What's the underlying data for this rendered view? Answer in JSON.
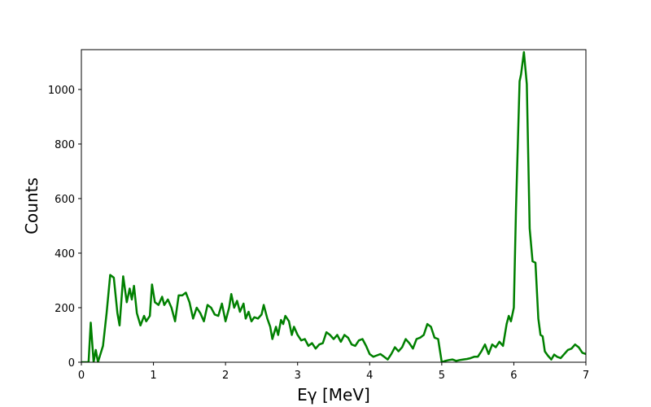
{
  "chart_data": {
    "type": "line",
    "x_label": "Eγ [MeV]",
    "y_label": "Counts",
    "xlim": [
      0,
      7
    ],
    "ylim": [
      0,
      1146
    ],
    "xticks": [
      0,
      1,
      2,
      3,
      4,
      5,
      6,
      7
    ],
    "yticks": [
      0,
      200,
      400,
      600,
      800,
      1000
    ],
    "series": [
      {
        "color": "#008000",
        "x": [
          0,
          0.1,
          0.13,
          0.17,
          0.2,
          0.23,
          0.3,
          0.35,
          0.4,
          0.45,
          0.5,
          0.53,
          0.58,
          0.63,
          0.67,
          0.7,
          0.73,
          0.77,
          0.82,
          0.87,
          0.9,
          0.95,
          0.98,
          1.02,
          1.07,
          1.12,
          1.15,
          1.2,
          1.25,
          1.3,
          1.35,
          1.4,
          1.45,
          1.5,
          1.55,
          1.6,
          1.65,
          1.7,
          1.75,
          1.8,
          1.85,
          1.9,
          1.95,
          2.0,
          2.05,
          2.08,
          2.12,
          2.16,
          2.2,
          2.25,
          2.28,
          2.32,
          2.36,
          2.4,
          2.45,
          2.5,
          2.53,
          2.58,
          2.62,
          2.65,
          2.7,
          2.73,
          2.77,
          2.8,
          2.83,
          2.88,
          2.92,
          2.95,
          3.0,
          3.05,
          3.1,
          3.15,
          3.2,
          3.25,
          3.3,
          3.35,
          3.4,
          3.45,
          3.5,
          3.55,
          3.6,
          3.65,
          3.7,
          3.75,
          3.8,
          3.85,
          3.9,
          3.95,
          4.0,
          4.05,
          4.1,
          4.15,
          4.2,
          4.25,
          4.3,
          4.35,
          4.4,
          4.45,
          4.5,
          4.55,
          4.6,
          4.65,
          4.7,
          4.75,
          4.8,
          4.85,
          4.9,
          4.95,
          5.0,
          5.05,
          5.1,
          5.15,
          5.2,
          5.25,
          5.3,
          5.35,
          5.4,
          5.45,
          5.5,
          5.55,
          5.6,
          5.65,
          5.7,
          5.75,
          5.8,
          5.85,
          5.9,
          5.93,
          5.96,
          6.0,
          6.03,
          6.08,
          6.1,
          6.14,
          6.18,
          6.22,
          6.26,
          6.3,
          6.34,
          6.37,
          6.4,
          6.43,
          6.47,
          6.52,
          6.56,
          6.6,
          6.65,
          6.7,
          6.75,
          6.8,
          6.85,
          6.9,
          6.95,
          7.0
        ],
        "values": [
          0,
          0,
          145,
          0,
          45,
          0,
          60,
          180,
          320,
          310,
          180,
          135,
          315,
          220,
          270,
          230,
          280,
          180,
          135,
          170,
          150,
          170,
          285,
          220,
          210,
          240,
          210,
          230,
          200,
          150,
          245,
          245,
          255,
          220,
          160,
          200,
          180,
          150,
          210,
          200,
          175,
          170,
          215,
          150,
          200,
          250,
          200,
          225,
          185,
          215,
          160,
          185,
          150,
          165,
          160,
          175,
          210,
          160,
          130,
          85,
          130,
          100,
          155,
          140,
          170,
          150,
          100,
          130,
          100,
          80,
          85,
          60,
          70,
          50,
          65,
          70,
          110,
          100,
          85,
          100,
          75,
          100,
          90,
          65,
          60,
          80,
          85,
          60,
          30,
          20,
          25,
          30,
          20,
          10,
          30,
          55,
          40,
          55,
          85,
          70,
          50,
          85,
          90,
          100,
          140,
          130,
          90,
          85,
          0,
          5,
          8,
          10,
          5,
          8,
          10,
          12,
          15,
          20,
          20,
          40,
          65,
          30,
          65,
          55,
          75,
          60,
          140,
          170,
          150,
          200,
          560,
          1030,
          1055,
          1137,
          1020,
          490,
          370,
          365,
          160,
          100,
          95,
          40,
          25,
          10,
          28,
          20,
          15,
          30,
          45,
          50,
          65,
          55,
          35,
          30
        ]
      }
    ]
  }
}
